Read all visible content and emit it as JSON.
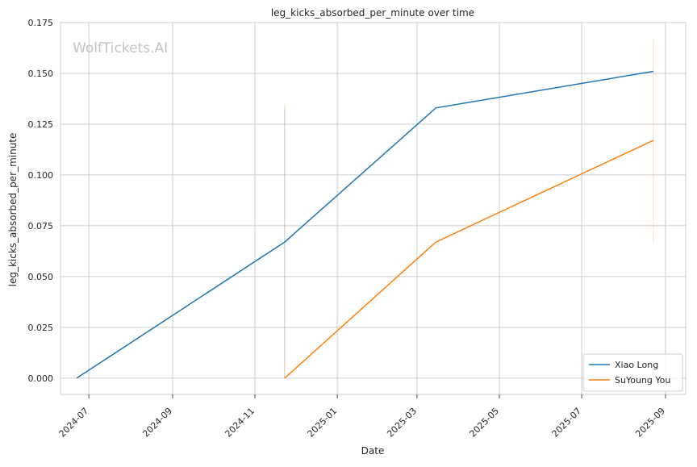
{
  "chart_data": {
    "type": "line",
    "title": "leg_kicks_absorbed_per_minute over time",
    "xlabel": "Date",
    "ylabel": "leg_kicks_absorbed_per_minute",
    "watermark": "WolfTickets.AI",
    "x_ticks": [
      "2024-07",
      "2024-09",
      "2024-11",
      "2025-01",
      "2025-03",
      "2025-05",
      "2025-07",
      "2025-09"
    ],
    "y_ticks": [
      "0.000",
      "0.025",
      "0.050",
      "0.075",
      "0.100",
      "0.125",
      "0.150",
      "0.175"
    ],
    "ylim": [
      -0.008,
      0.175
    ],
    "xlim": [
      "2024-06-10",
      "2025-09-16"
    ],
    "grid": true,
    "legend_position": "lower-right",
    "series": [
      {
        "name": "Xiao Long",
        "color": "#1f77b4",
        "points": [
          {
            "x": "2024-06-22",
            "y": 0.0
          },
          {
            "x": "2024-11-23",
            "y": 0.067
          },
          {
            "x": "2025-03-15",
            "y": 0.133
          },
          {
            "x": "2025-08-23",
            "y": 0.151
          }
        ],
        "error_bars": [
          {
            "x": "2024-11-23",
            "low": 0.0,
            "high": 0.133
          }
        ]
      },
      {
        "name": "SuYoung You",
        "color": "#ff7f0e",
        "points": [
          {
            "x": "2024-11-23",
            "y": 0.0
          },
          {
            "x": "2025-03-15",
            "y": 0.067
          },
          {
            "x": "2025-08-23",
            "y": 0.117
          }
        ],
        "error_bars": [
          {
            "x": "2024-11-23",
            "low": 0.0,
            "high": 0.135
          },
          {
            "x": "2025-08-23",
            "low": 0.067,
            "high": 0.167
          }
        ]
      }
    ]
  }
}
